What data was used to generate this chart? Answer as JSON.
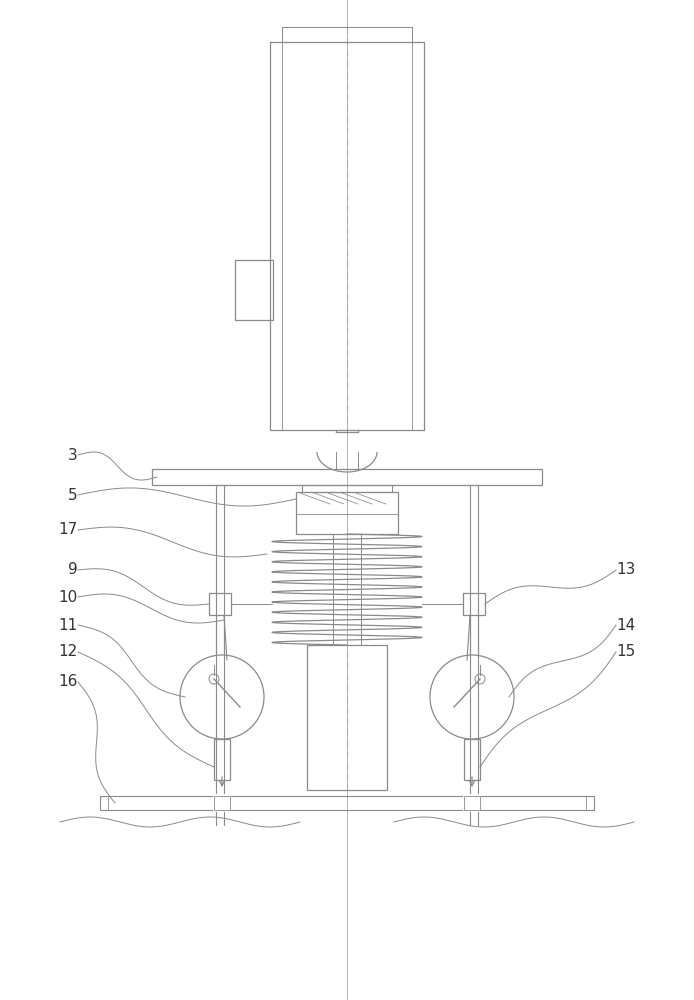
{
  "line_color": "#8a8a8a",
  "bg_color": "#ffffff",
  "label_color": "#333333",
  "fig_width": 6.94,
  "fig_height": 10.0,
  "dpi": 100
}
